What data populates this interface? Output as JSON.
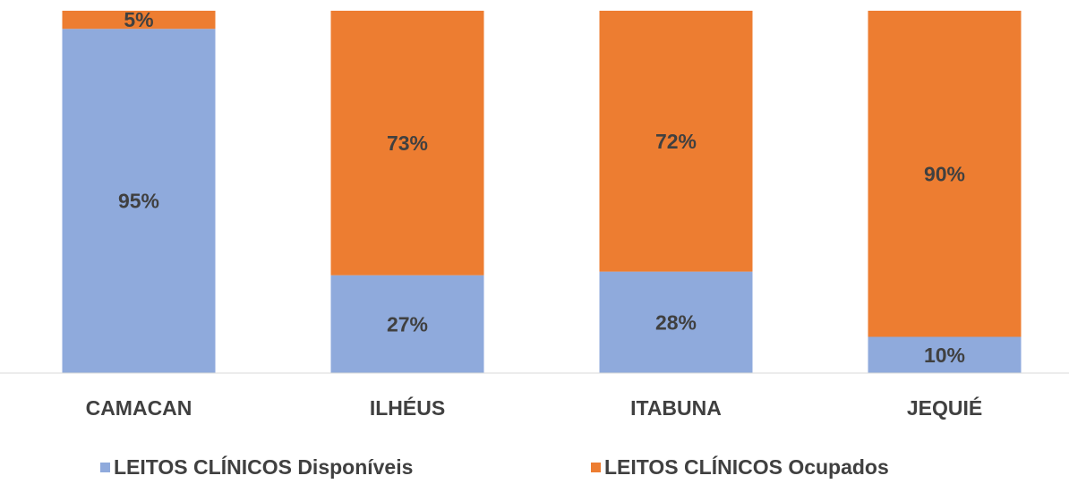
{
  "chart_data": {
    "type": "stacked_bar",
    "categories": [
      "CAMACAN",
      "ILHÉUS",
      "ITABUNA",
      "JEQUIÉ"
    ],
    "series": [
      {
        "name": "LEITOS CLÍNICOS Disponíveis",
        "color": "#8faadc",
        "values": [
          95,
          27,
          28,
          10
        ],
        "value_labels": [
          "95%",
          "27%",
          "28%",
          "10%"
        ]
      },
      {
        "name": "LEITOS CLÍNICOS Ocupados",
        "color": "#ed7d31",
        "values": [
          5,
          73,
          72,
          90
        ],
        "value_labels": [
          "5%",
          "73%",
          "72%",
          "90%"
        ]
      }
    ],
    "ylim": [
      0,
      100
    ],
    "legend": "bottom"
  }
}
